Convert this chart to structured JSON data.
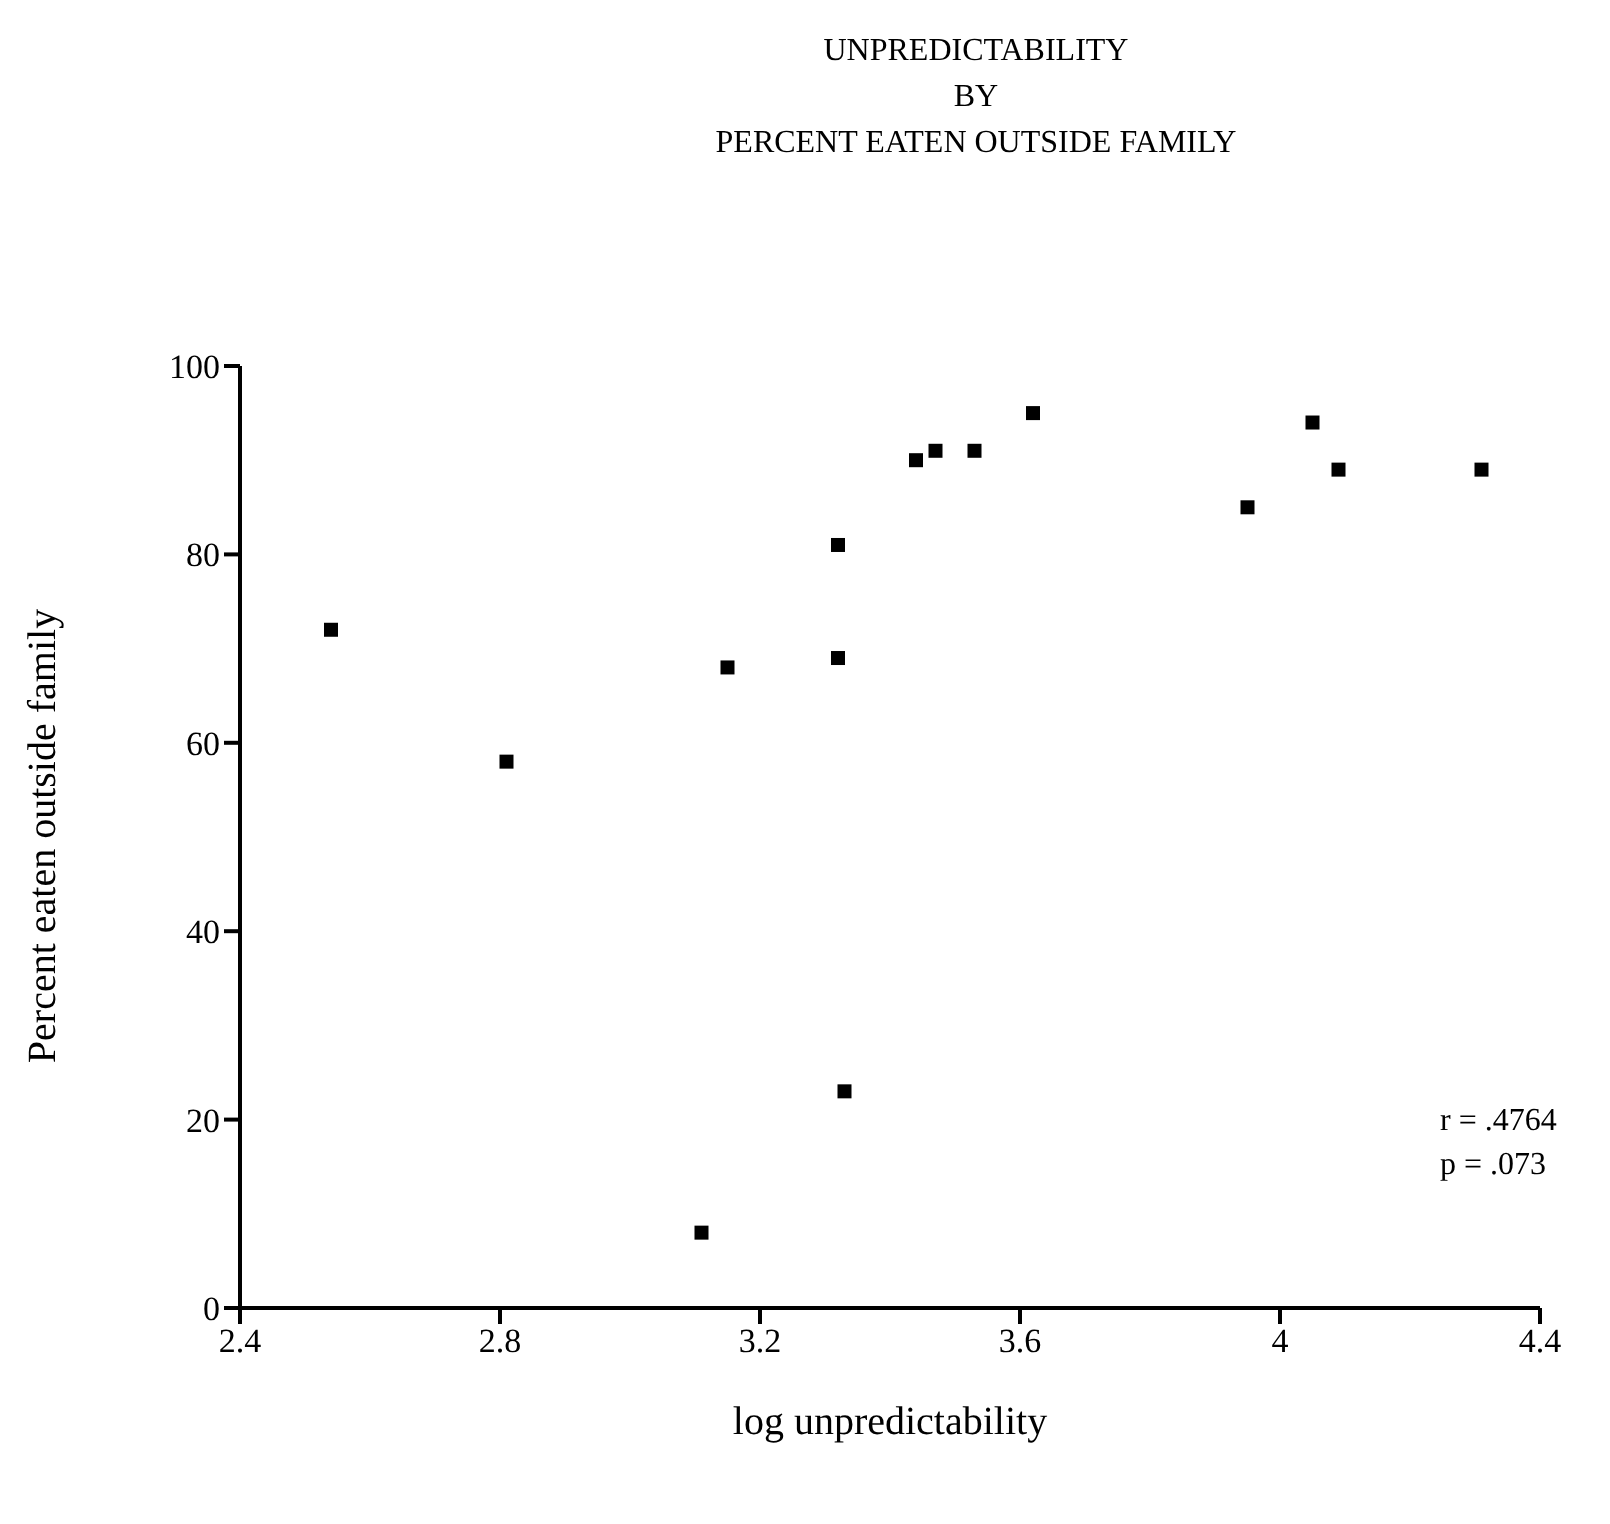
{
  "chart_data": {
    "type": "scatter",
    "title": "UNPREDICTABILITY\nBY\nPERCENT EATEN OUTSIDE FAMILY",
    "xlabel": "log unpredictability",
    "ylabel": "Percent eaten outside family",
    "x": [
      2.54,
      2.81,
      3.11,
      3.15,
      3.32,
      3.32,
      3.33,
      3.44,
      3.47,
      3.53,
      3.62,
      3.95,
      4.05,
      4.09,
      4.31
    ],
    "values": [
      72,
      58,
      8,
      68,
      69,
      81,
      23,
      90,
      91,
      91,
      95,
      85,
      94,
      89,
      89
    ],
    "color": "#000000",
    "marker": "square",
    "xlim": [
      2.4,
      4.4
    ],
    "xticks": [
      2.4,
      2.8,
      3.2,
      3.6,
      4,
      4.4
    ],
    "ylim": [
      0,
      100
    ],
    "yticks": [
      0,
      20,
      40,
      60,
      80,
      100
    ],
    "grid": false,
    "legend": false,
    "annotations": [
      "r = .4764",
      "p = .073"
    ]
  }
}
